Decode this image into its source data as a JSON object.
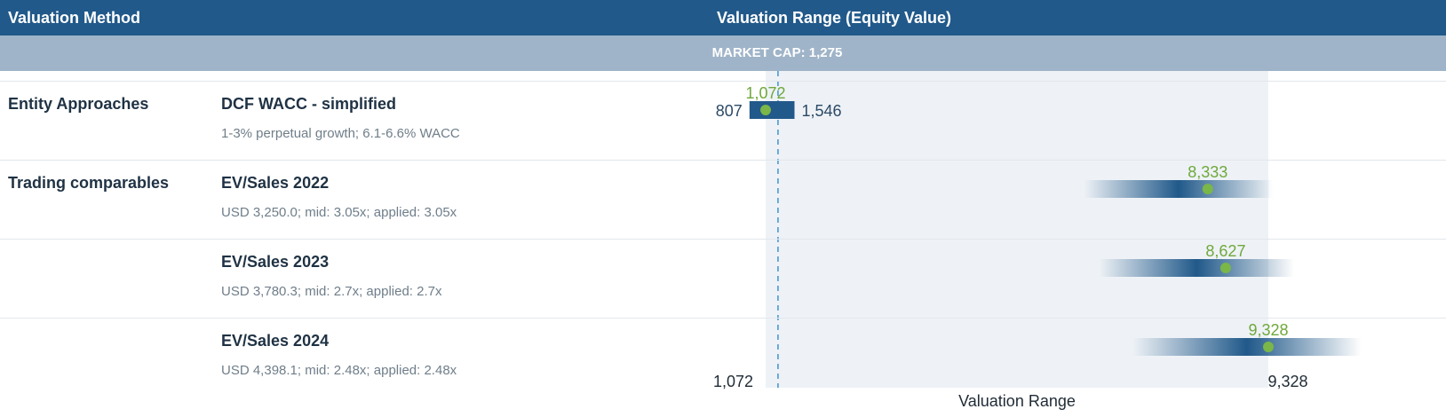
{
  "header": {
    "col_method": "Valuation Method",
    "col_range": "Valuation Range (Equity Value)"
  },
  "market_cap": {
    "label": "MARKET CAP: 1,275",
    "value": 1275
  },
  "rows": [
    {
      "group": "Entity Approaches",
      "method": "DCF WACC - simplified",
      "detail": "1-3% perpetual growth; 6.1-6.6% WACC"
    },
    {
      "group": "Trading comparables",
      "method": "EV/Sales 2022",
      "detail": "USD 3,250.0; mid: 3.05x; applied: 3.05x"
    },
    {
      "group": "",
      "method": "EV/Sales 2023",
      "detail": "USD 3,780.3; mid: 2.7x; applied: 2.7x"
    },
    {
      "group": "",
      "method": "EV/Sales 2024",
      "detail": "USD 4,398.1; mid: 2.48x; applied: 2.48x"
    }
  ],
  "colors": {
    "header_bg": "#21598a",
    "market_cap_bg": "#9fb4c8",
    "bar": "#21598a",
    "midpoint": "#7ab648",
    "midpoint_label": "#6fa83c",
    "range_band": "#eef2f6",
    "market_cap_line": "#3f94d0"
  },
  "chart_data": {
    "type": "range",
    "xlabel": "Valuation Range",
    "xlim": [
      1072,
      9328
    ],
    "axis_tick_labels": [
      "1,072",
      "9,328"
    ],
    "market_cap_line": 1275,
    "series": [
      {
        "method": "DCF WACC - simplified",
        "low": 807,
        "mid": 1072,
        "high": 1546,
        "low_label": "807",
        "mid_label": "1,072",
        "high_label": "1,546",
        "style": "solid"
      },
      {
        "method": "EV/Sales 2022",
        "low": 6300,
        "mid": 8333,
        "high": 9400,
        "mid_label": "8,333",
        "style": "faded"
      },
      {
        "method": "EV/Sales 2023",
        "low": 6550,
        "mid": 8627,
        "high": 9750,
        "mid_label": "8,627",
        "style": "faded"
      },
      {
        "method": "EV/Sales 2024",
        "low": 7100,
        "mid": 9328,
        "high": 10850,
        "mid_label": "9,328",
        "style": "faded"
      }
    ]
  }
}
